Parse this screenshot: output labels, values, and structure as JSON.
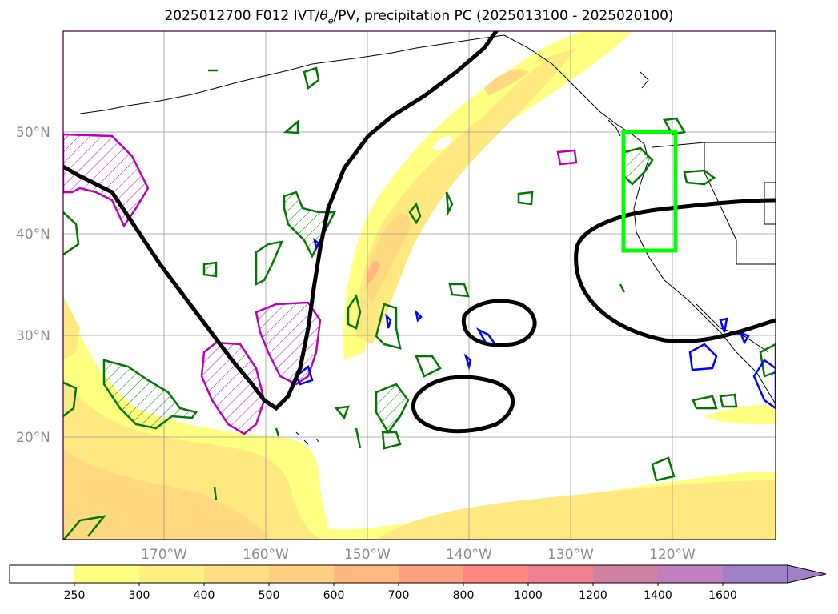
{
  "title": "2025012700 F012 IVT/θe/PV, precipitation PC (2025013100 - 2025020100)",
  "title_parts": {
    "prefix": "2025012700 F012 IVT/",
    "theta": "θ",
    "sub": "e",
    "suffix": "/PV, precipitation PC (2025013100 - 2025020100)"
  },
  "map": {
    "lat_labels": [
      "50°N",
      "40°N",
      "30°N",
      "20°N"
    ],
    "lat_values": [
      50,
      40,
      30,
      20
    ],
    "lon_labels": [
      "170°W",
      "160°W",
      "150°W",
      "140°W",
      "130°W",
      "120°W"
    ],
    "lon_values": [
      -170,
      -160,
      -150,
      -140,
      -130,
      -120
    ],
    "extent": {
      "lon": [
        -180,
        -110
      ],
      "lat": [
        10,
        60
      ]
    },
    "gridlines": true
  },
  "colorbar": {
    "ticks": [
      "250",
      "300",
      "400",
      "500",
      "600",
      "700",
      "800",
      "1000",
      "1200",
      "1400",
      "1600"
    ],
    "colors": [
      "#ffffff",
      "#ffff80",
      "#ffee80",
      "#ffdd80",
      "#ffd080",
      "#ffb880",
      "#ffa080",
      "#ff8880",
      "#ee8090",
      "#d080a0",
      "#c080c0",
      "#a080c8"
    ],
    "extend": "max"
  },
  "colors": {
    "ivt_fill_light": "#ffff80",
    "ivt_fill_mid": "#ffe480",
    "ivt_fill_dark": "#ffd080",
    "theta_contour": "#000000",
    "pv_hatch_magenta": "#bb00bb",
    "precip_green": "#007700",
    "precip_blue": "#0000ff",
    "highlight_box": "#00ff00"
  }
}
